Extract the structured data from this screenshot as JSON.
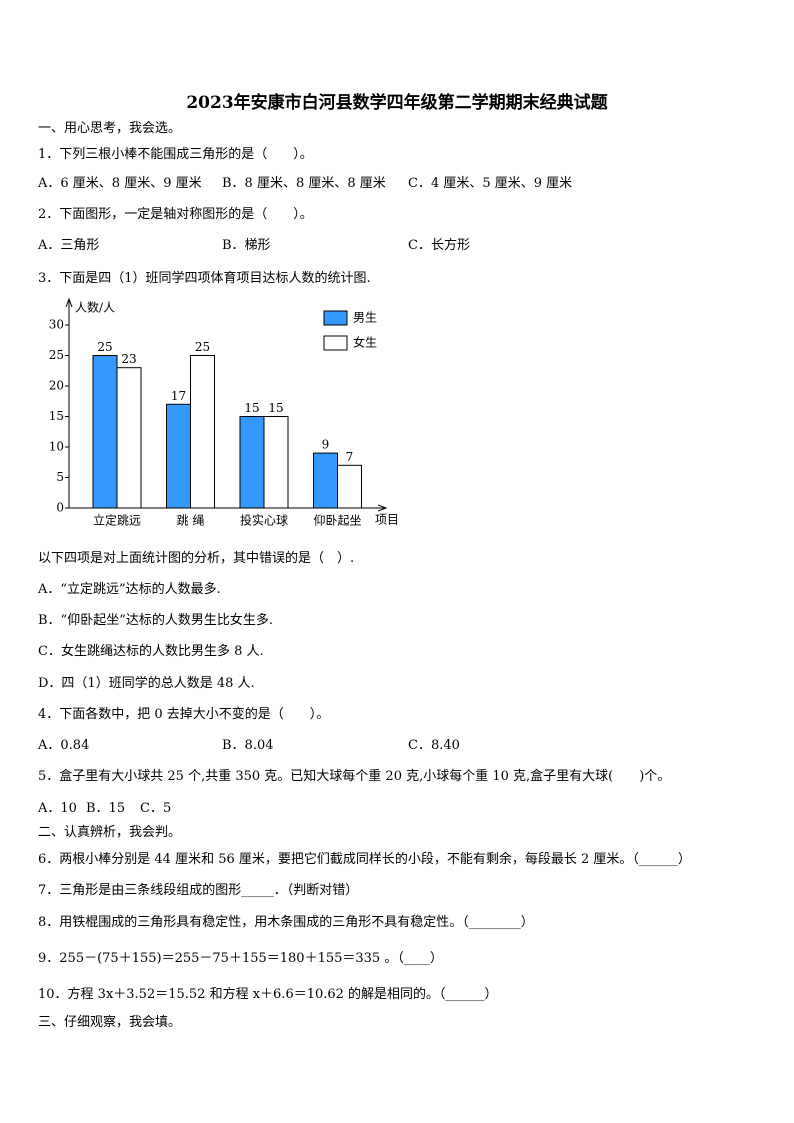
{
  "title": "2023年安康市白河县数学四年级第二学期期末经典试题",
  "section1": "一、用心思考，我会选。",
  "q1": {
    "text": "1．下列三根小棒不能围成三角形的是（　　）。",
    "options": [
      "A．6 厘米、8 厘米、9 厘米",
      "B．8 厘米、8 厘米、8 厘米",
      "C．4 厘米、5 厘米、9 厘米"
    ]
  },
  "q2": {
    "text": "2．下面图形，一定是轴对称图形的是（　　）。",
    "options": [
      "A．三角形",
      "B．梯形",
      "C．长方形"
    ]
  },
  "q3": {
    "text": "3．下面是四（1）班同学四项体育项目达标人数的统计图.",
    "prompt": "以下四项是对上面统计图的分析，其中错误的是（　）.",
    "options": [
      "A．“立定跳远”达标的人数最多.",
      "B．“仰卧起坐”达标的人数男生比女生多.",
      "C．女生跳绳达标的人数比男生多 8 人.",
      "D．四（1）班同学的总人数是 48 人."
    ]
  },
  "q4": {
    "text": "4．下面各数中，把 0 去掉大小不变的是（　　）。",
    "options": [
      "A．0.84",
      "B．8.04",
      "C．8.40"
    ]
  },
  "q5": {
    "text": "5．盒子里有大小球共 25 个,共重 350 克。已知大球每个重 20 克,小球每个重 10 克,盒子里有大球(　　)个。",
    "options": [
      "A．10",
      "B．15",
      "C．5"
    ]
  },
  "section2": "二、认真辨析，我会判。",
  "q6": "6．两根小棒分别是 44 厘米和 56 厘米，要把它们截成同样长的小段，不能有剩余，每段最长 2 厘米。（______）",
  "q7": "7．三角形是由三条线段组成的图形_____．（判断对错）",
  "q8": "8．用铁棍围成的三角形具有稳定性，用木条围成的三角形不具有稳定性。（________）",
  "q9": "9．255－(75＋155)＝255－75＋155＝180＋155＝335 。（____）",
  "q10": "10．方程 3x＋3.52＝15.52 和方程 x＋6.6＝10.62 的解是相同的。（______）",
  "section3": "三、仔细观察，我会填。",
  "chart_data": {
    "type": "bar",
    "y_label": "人数/人",
    "x_label": "项目",
    "categories": [
      "立定跳远",
      "跳 绳",
      "投实心球",
      "仰卧起坐"
    ],
    "series": [
      {
        "name": "男生",
        "color": "#3399ff",
        "values": [
          25,
          17,
          15,
          9
        ]
      },
      {
        "name": "女生",
        "color": "#ffffff",
        "values": [
          23,
          25,
          15,
          7
        ]
      }
    ],
    "ylim": [
      0,
      30
    ],
    "yticks": [
      0,
      5,
      10,
      15,
      20,
      25,
      30
    ],
    "grid": false,
    "legend": "top right"
  }
}
